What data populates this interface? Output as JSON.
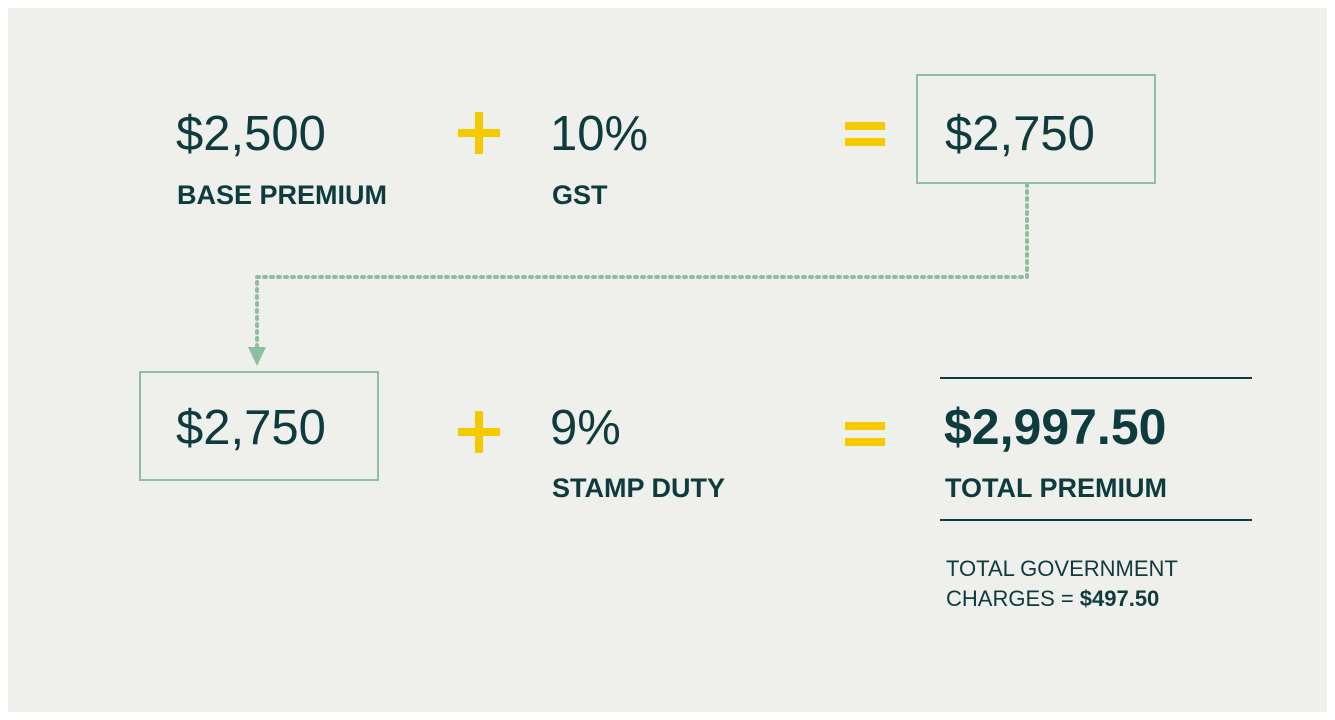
{
  "row1": {
    "base": {
      "value": "$2,500",
      "label": "BASE PREMIUM"
    },
    "tax": {
      "value": "10%",
      "label": "GST"
    },
    "result": "$2,750"
  },
  "row2": {
    "carried": "$2,750",
    "tax": {
      "value": "9%",
      "label": "STAMP DUTY"
    },
    "result": {
      "value": "$2,997.50",
      "label": "TOTAL PREMIUM"
    },
    "note": {
      "lines": [
        "TOTAL GOVERNMENT",
        "CHARGES ="
      ],
      "amount": "$497.50"
    }
  }
}
